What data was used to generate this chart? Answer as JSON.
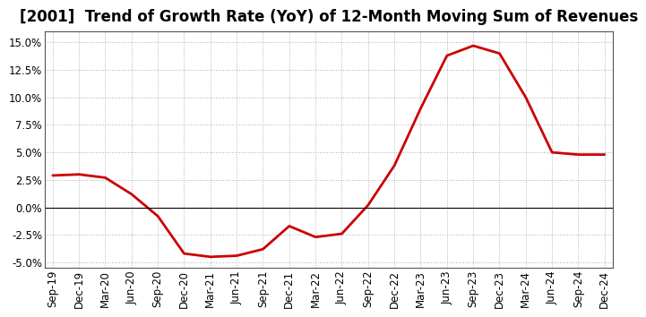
{
  "title": "[2001]  Trend of Growth Rate (YoY) of 12-Month Moving Sum of Revenues",
  "x_labels": [
    "Sep-19",
    "Dec-19",
    "Mar-20",
    "Jun-20",
    "Sep-20",
    "Dec-20",
    "Mar-21",
    "Jun-21",
    "Sep-21",
    "Dec-21",
    "Mar-22",
    "Jun-22",
    "Sep-22",
    "Dec-22",
    "Mar-23",
    "Jun-23",
    "Sep-23",
    "Dec-23",
    "Mar-24",
    "Jun-24",
    "Sep-24",
    "Dec-24"
  ],
  "y_values": [
    2.9,
    3.0,
    2.7,
    1.2,
    -0.8,
    -4.2,
    -4.5,
    -4.4,
    -3.8,
    -1.7,
    -2.7,
    -2.4,
    0.2,
    3.8,
    9.0,
    13.8,
    14.7,
    14.0,
    10.0,
    5.0,
    4.8,
    4.8
  ],
  "ylim": [
    -5.5,
    16.0
  ],
  "yticks": [
    -5.0,
    -2.5,
    0.0,
    2.5,
    5.0,
    7.5,
    10.0,
    12.5,
    15.0
  ],
  "line_color": "#cc0000",
  "background_color": "#ffffff",
  "plot_bg_color": "#ffffff",
  "grid_color": "#b0b0b0",
  "title_fontsize": 12,
  "tick_fontsize": 8.5,
  "spine_color": "#555555"
}
